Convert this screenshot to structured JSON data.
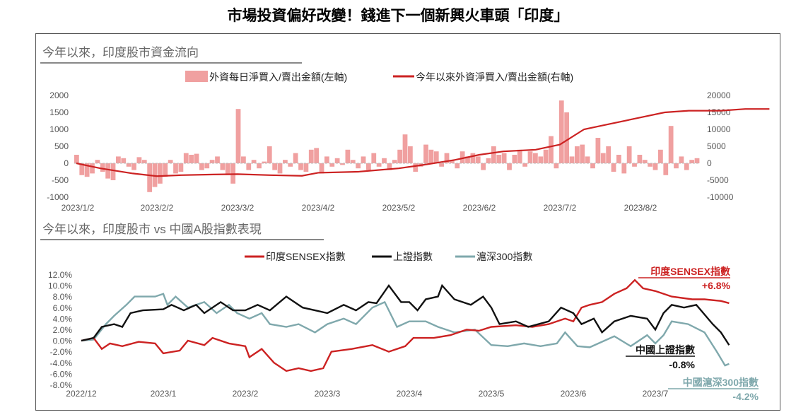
{
  "title": "市場投資偏好改變！錢進下一個新興火車頭「印度」",
  "chart_data": [
    {
      "type": "bar+line",
      "title": "今年以來，印度股市資金流向",
      "legend": [
        "外資每日淨買入/賣出金額(左軸)",
        "今年以來外資淨買入/賣出金額(右軸)"
      ],
      "legend_placement": "top-center",
      "x_ticks": [
        "2023/1/2",
        "2023/2/2",
        "2023/3/2",
        "2023/4/2",
        "2023/5/2",
        "2023/6/2",
        "2023/7/2",
        "2023/8/2"
      ],
      "ylim_left": [
        -1000,
        2000
      ],
      "y_ticks_left": [
        "2000",
        "1500",
        "1000",
        "500",
        "0",
        "-500",
        "-1000"
      ],
      "ylim_right": [
        -10000,
        20000
      ],
      "y_ticks_right": [
        "20000",
        "15000",
        "10000",
        "5000",
        "0",
        "-5000",
        "-10000"
      ],
      "colors": {
        "bars": "#f0a0a0",
        "line": "#cc2222"
      },
      "daily_bars": [
        250,
        -350,
        -400,
        -300,
        100,
        -250,
        -450,
        -500,
        200,
        150,
        -100,
        -200,
        180,
        100,
        -850,
        -700,
        -600,
        -400,
        100,
        -300,
        -250,
        300,
        250,
        280,
        -200,
        -150,
        100,
        200,
        -200,
        -350,
        -600,
        1600,
        200,
        -200,
        100,
        -150,
        50,
        500,
        -200,
        -300,
        100,
        -100,
        300,
        -200,
        -250,
        400,
        450,
        -300,
        200,
        -100,
        150,
        -50,
        400,
        100,
        -150,
        200,
        -200,
        300,
        -100,
        150,
        -200,
        100,
        400,
        850,
        500,
        -250,
        -100,
        550,
        400,
        350,
        -100,
        300,
        100,
        -150,
        350,
        200,
        300,
        200,
        -200,
        150,
        500,
        250,
        300,
        -200,
        250,
        400,
        -100,
        350,
        300,
        200,
        400,
        800,
        -150,
        1850,
        1500,
        200,
        500,
        550,
        200,
        -150,
        750,
        300,
        500,
        -250,
        250,
        -300,
        500,
        -100,
        250,
        100,
        -100,
        -200,
        400,
        -350,
        1100,
        -150,
        200,
        -200,
        100,
        150
      ],
      "cumulative_months_since_jan2": [
        0,
        0.3,
        0.7,
        1.0,
        1.3,
        1.7,
        2.0,
        2.4,
        2.8,
        3.0,
        3.5,
        4.0,
        4.3,
        4.7,
        5.0,
        5.3,
        5.7,
        6.0,
        6.3,
        6.6,
        7.0,
        7.3,
        7.6,
        8.0,
        8.3,
        8.6
      ],
      "cumulative_values": [
        0,
        -1500,
        -3000,
        -3800,
        -3500,
        -3300,
        -3200,
        -3500,
        -3700,
        -2800,
        -2500,
        -1500,
        -500,
        1000,
        2500,
        3500,
        4000,
        5500,
        10000,
        11500,
        13500,
        15000,
        15500,
        15500,
        16000,
        16000
      ]
    },
    {
      "type": "line",
      "title": "今年以來，印度股市 vs 中國A股指數表現",
      "legend_placement": "top-center",
      "x_ticks": [
        "2022/12",
        "2023/1",
        "2023/2",
        "2023/3",
        "2023/4",
        "2023/5",
        "2023/6",
        "2023/7"
      ],
      "ylim": [
        -8,
        12
      ],
      "y_ticks": [
        "12.0%",
        "10.0%",
        "8.0%",
        "6.0%",
        "4.0%",
        "2.0%",
        "0.0%",
        "-2.0%",
        "-4.0%",
        "-6.0%",
        "-8.0%"
      ],
      "series": [
        {
          "name": "印度SENSEX指數",
          "color": "#cc2222",
          "label": "印度SENSEX指數",
          "final": "+6.8%",
          "x": [
            0,
            0.15,
            0.25,
            0.35,
            0.5,
            0.7,
            0.9,
            1.0,
            1.2,
            1.3,
            1.5,
            1.6,
            1.8,
            2.0,
            2.05,
            2.2,
            2.35,
            2.5,
            2.65,
            2.8,
            2.95,
            3.05,
            3.3,
            3.55,
            3.75,
            3.95,
            4.05,
            4.3,
            4.5,
            4.7,
            4.85,
            5.0,
            5.3,
            5.5,
            5.7,
            5.9,
            6.0,
            6.1,
            6.2,
            6.35,
            6.5,
            6.65,
            6.75,
            6.85,
            7.0,
            7.2,
            7.45,
            7.6,
            7.8,
            7.9
          ],
          "y": [
            0,
            0.5,
            -1.5,
            -0.5,
            -1,
            -0.2,
            -0.5,
            -2.3,
            -1.8,
            0,
            -0.8,
            0.5,
            -0.5,
            -1,
            -3,
            -1.5,
            -4,
            -5.5,
            -5,
            -5.5,
            -5,
            -2,
            -1.5,
            -0.8,
            -2,
            -1,
            0.5,
            0.5,
            1,
            2,
            1.8,
            2.5,
            2.8,
            2.5,
            3,
            4,
            3.5,
            6,
            6.5,
            7,
            8.5,
            9.5,
            11,
            9.5,
            9,
            8,
            7.5,
            7.5,
            7.2,
            6.8
          ]
        },
        {
          "name": "上證指數",
          "color": "#111111",
          "label": "中國上證指數",
          "final": "-0.8%",
          "x": [
            0,
            0.15,
            0.25,
            0.4,
            0.5,
            0.6,
            0.75,
            1.0,
            1.1,
            1.25,
            1.4,
            1.5,
            1.7,
            1.85,
            2.0,
            2.15,
            2.3,
            2.5,
            2.7,
            2.85,
            3.0,
            3.2,
            3.35,
            3.5,
            3.6,
            3.75,
            3.9,
            4.0,
            4.1,
            4.2,
            4.35,
            4.4,
            4.55,
            4.75,
            4.9,
            5.0,
            5.1,
            5.3,
            5.45,
            5.7,
            5.85,
            6.0,
            6.1,
            6.25,
            6.35,
            6.5,
            6.7,
            6.9,
            7.0,
            7.1,
            7.2,
            7.35,
            7.5,
            7.7,
            7.8,
            7.9
          ],
          "y": [
            0,
            0.5,
            2.5,
            3,
            2.5,
            5,
            5.5,
            5.7,
            6.5,
            5.5,
            6.5,
            5,
            7,
            5.5,
            5.5,
            6.5,
            5.5,
            8,
            6,
            5.5,
            5,
            6.5,
            5.5,
            7,
            6.8,
            10,
            7,
            7,
            5.5,
            7.5,
            8,
            10,
            7.5,
            6.5,
            8,
            6,
            3,
            3.5,
            2.5,
            3.5,
            6,
            5,
            3,
            4,
            1.5,
            3.5,
            4.5,
            4,
            2,
            5,
            6.5,
            6,
            6.5,
            3,
            1.5,
            -0.8
          ]
        },
        {
          "name": "滬深300指數",
          "color": "#7fa8ac",
          "label": "中國滬深300指數",
          "final": "-4.2%",
          "x": [
            0,
            0.15,
            0.3,
            0.4,
            0.55,
            0.65,
            0.9,
            1.0,
            1.05,
            1.15,
            1.3,
            1.5,
            1.65,
            1.8,
            1.9,
            2.05,
            2.2,
            2.3,
            2.5,
            2.65,
            2.85,
            3.0,
            3.2,
            3.35,
            3.55,
            3.7,
            3.85,
            4.0,
            4.2,
            4.35,
            4.55,
            4.8,
            5.0,
            5.2,
            5.4,
            5.6,
            5.8,
            5.9,
            6.05,
            6.2,
            6.5,
            6.7,
            6.9,
            7.0,
            7.1,
            7.2,
            7.4,
            7.6,
            7.75,
            7.85,
            7.9
          ],
          "y": [
            0,
            0.2,
            3,
            4.5,
            6.5,
            8,
            8,
            8.5,
            6.5,
            8,
            6,
            7,
            5,
            6.5,
            5,
            4,
            5,
            3,
            2.5,
            3,
            1.5,
            3,
            4,
            3,
            6,
            7,
            2.5,
            3.5,
            3.5,
            2.5,
            1.5,
            2,
            -0.8,
            -1,
            -0.5,
            -1,
            -0.5,
            1.5,
            -1,
            -1.2,
            0.8,
            -1,
            1,
            -0.5,
            1,
            3.5,
            3,
            1.5,
            -2,
            -4.5,
            -4.2
          ]
        }
      ]
    }
  ]
}
